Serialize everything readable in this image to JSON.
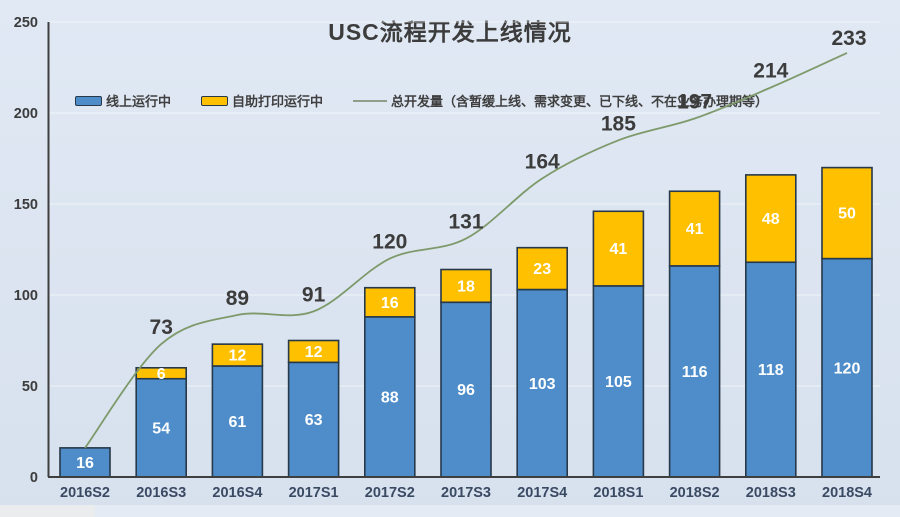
{
  "title": "USC流程开发上线情况",
  "legend": {
    "items": [
      {
        "label": "线上运行中",
        "swatch": "bar",
        "color": "#4e8dc9"
      },
      {
        "label": "自助打印运行中",
        "swatch": "bar",
        "color": "#ffc000"
      },
      {
        "label": "总开发量（含暂缓上线、需求变更、已下线、不在业务办理期等）",
        "swatch": "line",
        "color": "#7e9a6b"
      }
    ]
  },
  "colors": {
    "background": "#dbe4f0",
    "bar_online": "#4e8dc9",
    "bar_print": "#ffc000",
    "bar_border": "#26384a",
    "total_line": "#7e9a6b",
    "title_text": "#3c3c3c",
    "axis_text": "#3a4a63",
    "bar_label_text": "#ffffff"
  },
  "chart_data": {
    "type": "bar",
    "subtype": "stacked-bars-with-line-overlay",
    "title": "USC流程开发上线情况",
    "categories": [
      "2016S2",
      "2016S3",
      "2016S4",
      "2017S1",
      "2017S2",
      "2017S3",
      "2017S4",
      "2018S1",
      "2018S2",
      "2018S3",
      "2018S4"
    ],
    "series": [
      {
        "name": "线上运行中",
        "type": "bar",
        "stacked": true,
        "color": "#4e8dc9",
        "values": [
          16,
          54,
          61,
          63,
          88,
          96,
          103,
          105,
          116,
          118,
          120
        ]
      },
      {
        "name": "自助打印运行中",
        "type": "bar",
        "stacked": true,
        "color": "#ffc000",
        "values": [
          null,
          6,
          12,
          12,
          16,
          18,
          23,
          41,
          41,
          48,
          50
        ]
      },
      {
        "name": "总开发量（含暂缓上线、需求变更、已下线、不在业务办理期等）",
        "type": "line",
        "color": "#7e9a6b",
        "values": [
          16,
          73,
          89,
          91,
          120,
          131,
          164,
          185,
          197,
          214,
          233
        ],
        "labels": [
          "",
          "73",
          "89",
          "91",
          "120",
          "131",
          "164",
          "185",
          "197",
          "214",
          "233"
        ]
      }
    ],
    "xlabel": "",
    "ylabel": "",
    "ylim": [
      0,
      250
    ],
    "yticks": [
      0,
      50,
      100,
      150,
      200,
      250
    ],
    "grid": "faint white horizontal lines at y ticks",
    "legend_position": "top-left"
  }
}
